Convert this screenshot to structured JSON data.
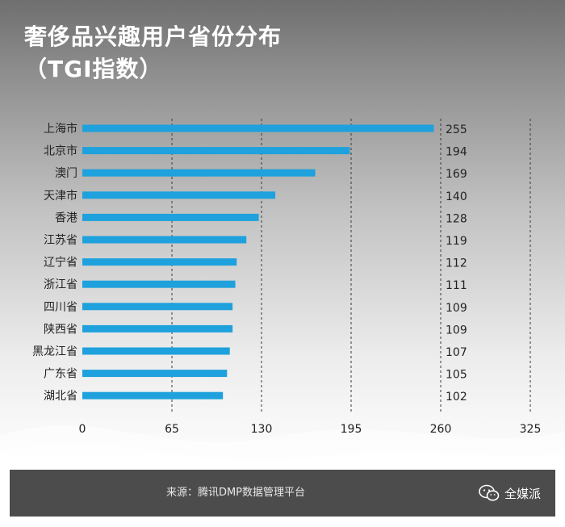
{
  "header": {
    "title_line1": "奢侈品兴趣用户省份分布",
    "title_line2": "（TGI指数）"
  },
  "chart_data": {
    "type": "bar",
    "orientation": "horizontal",
    "categories": [
      "上海市",
      "北京市",
      "澳门",
      "天津市",
      "香港",
      "江苏省",
      "辽宁省",
      "浙江省",
      "四川省",
      "陕西省",
      "黑龙江省",
      "广东省",
      "湖北省"
    ],
    "values": [
      255,
      194,
      169,
      140,
      128,
      119,
      112,
      111,
      109,
      109,
      107,
      105,
      102
    ],
    "value_labels": [
      "255",
      "194",
      "169",
      "140",
      "128",
      "119",
      "112",
      "111",
      "109",
      "109",
      "107",
      "105",
      "102"
    ],
    "xlim": [
      0,
      325
    ],
    "xticks": [
      0,
      65,
      130,
      195,
      260,
      325
    ],
    "xtick_labels": [
      "0",
      "65",
      "130",
      "195",
      "260",
      "325"
    ],
    "grid": "vertical dashed",
    "bar_color": "#1ea1dc"
  },
  "footer": {
    "source": "来源：腾讯DMP数据管理平台",
    "brand": "全媒派",
    "brand_icon": "wechat-icon"
  }
}
